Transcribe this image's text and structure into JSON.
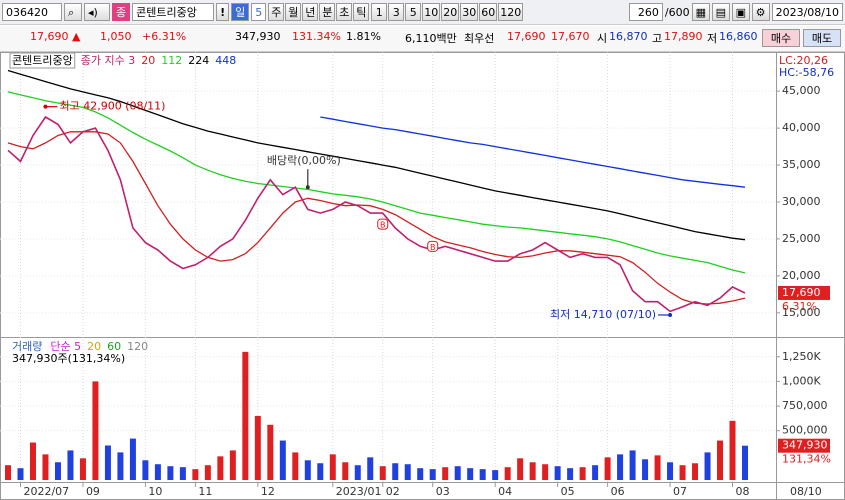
{
  "toolbar": {
    "code": "036420",
    "type_badge": "종",
    "name": "콘텐트리중앙",
    "alert": "!",
    "period": "일",
    "period_num": "5",
    "periods": [
      "주",
      "월",
      "년",
      "분",
      "초",
      "틱"
    ],
    "intervals": [
      "1",
      "3",
      "5",
      "10",
      "20",
      "30",
      "60",
      "120"
    ],
    "count": "260",
    "count_max": "/600",
    "date": "2023/08/10"
  },
  "quote": {
    "price": "17,690 ▲",
    "change": "1,050",
    "change_pct": "+6.31%",
    "volume": "347,930",
    "volume_ratio": "131.34%",
    "turnover": "1.81%",
    "amount": "6,110백만",
    "best_label": "최우선",
    "best_ask": "17,690",
    "best_bid": "17,670",
    "open_label": "시",
    "open": "16,870",
    "high_label": "고",
    "high": "17,890",
    "low_label": "저",
    "low": "16,860",
    "buy": "매수",
    "sell": "매도"
  },
  "chart_data": [
    {
      "type": "line",
      "title": "콘텐트리중앙",
      "lc": "LC:20,26",
      "hc": "HC:-58,76",
      "ylim": [
        12000,
        50300
      ],
      "yticks": [
        {
          "value": 15000,
          "label": "15,000"
        },
        {
          "value": 20000,
          "label": "20,000"
        },
        {
          "value": 25000,
          "label": "25,000"
        },
        {
          "value": 30000,
          "label": "30,000"
        },
        {
          "value": 35000,
          "label": "35,000"
        },
        {
          "value": 40000,
          "label": "40,000"
        },
        {
          "value": 45000,
          "label": "45,000"
        }
      ],
      "series": [
        {
          "name": "종가 지수 3",
          "color": "#c02070",
          "values": [
            37000,
            35500,
            39000,
            41500,
            40500,
            38000,
            39500,
            40000,
            37000,
            33000,
            26500,
            24500,
            23500,
            22000,
            21000,
            21500,
            22500,
            24000,
            25000,
            27500,
            30500,
            33000,
            31000,
            32000,
            29000,
            28500,
            29000,
            30000,
            29500,
            28500,
            28500,
            26500,
            25000,
            24000,
            23500,
            24000,
            23500,
            23000,
            22500,
            22000,
            22000,
            23000,
            23500,
            24500,
            23500,
            22500,
            23000,
            22500,
            22500,
            21500,
            18000,
            16500,
            16500,
            15200,
            15800,
            16500,
            16000,
            17000,
            18500,
            17690
          ]
        },
        {
          "name": "20",
          "color": "#d02020",
          "values": [
            38000,
            37500,
            37200,
            38000,
            39000,
            39500,
            39500,
            39500,
            39200,
            38000,
            35500,
            32500,
            29500,
            27000,
            25000,
            23500,
            22500,
            22000,
            22200,
            23000,
            24500,
            26500,
            28500,
            30000,
            30500,
            30200,
            29800,
            29500,
            29600,
            29500,
            29000,
            28300,
            27300,
            26300,
            25300,
            24600,
            24200,
            23800,
            23300,
            22900,
            22600,
            22500,
            22700,
            23100,
            23400,
            23400,
            23200,
            23000,
            22800,
            22600,
            21800,
            20500,
            19000,
            17800,
            16800,
            16300,
            16200,
            16300,
            16600,
            17000
          ]
        },
        {
          "name": "112",
          "color": "#20d020",
          "values": [
            44900,
            44500,
            44100,
            43700,
            43400,
            43100,
            42800,
            42200,
            41400,
            40400,
            39400,
            38500,
            37700,
            36900,
            36000,
            35000,
            34300,
            33700,
            33200,
            32800,
            32500,
            32300,
            32100,
            31900,
            31700,
            31400,
            31100,
            30900,
            30700,
            30400,
            30000,
            29500,
            29000,
            28500,
            28200,
            27900,
            27600,
            27300,
            27000,
            26800,
            26600,
            26500,
            26300,
            26100,
            25900,
            25700,
            25500,
            25300,
            25000,
            24600,
            24100,
            23600,
            23100,
            22700,
            22400,
            22100,
            21800,
            21300,
            20800,
            20400
          ]
        },
        {
          "name": "224",
          "color": "#000000",
          "values": [
            47800,
            47300,
            46800,
            46300,
            45800,
            45300,
            44900,
            44500,
            44100,
            43600,
            43000,
            42400,
            41800,
            41200,
            40600,
            40100,
            39600,
            39200,
            38800,
            38400,
            38000,
            37700,
            37400,
            37100,
            36800,
            36500,
            36200,
            35900,
            35600,
            35300,
            35000,
            34700,
            34300,
            33900,
            33500,
            33100,
            32700,
            32300,
            31900,
            31500,
            31200,
            30900,
            30600,
            30300,
            30000,
            29700,
            29400,
            29100,
            28800,
            28400,
            28000,
            27600,
            27200,
            26800,
            26400,
            26000,
            25700,
            25400,
            25100,
            24900
          ]
        },
        {
          "name": "448",
          "color": "#1030e0",
          "values": [
            null,
            null,
            null,
            null,
            null,
            null,
            null,
            null,
            null,
            null,
            null,
            null,
            null,
            null,
            null,
            null,
            null,
            null,
            null,
            null,
            null,
            null,
            null,
            null,
            null,
            41500,
            41200,
            40900,
            40600,
            40300,
            40000,
            39800,
            39500,
            39200,
            38900,
            38600,
            38300,
            38000,
            37800,
            37500,
            37200,
            36900,
            36600,
            36300,
            36000,
            35700,
            35400,
            35100,
            34800,
            34500,
            34200,
            33900,
            33600,
            33300,
            33000,
            32800,
            32600,
            32400,
            32200,
            32000
          ]
        }
      ],
      "annotations": [
        {
          "text": "최고 42,900 (08/11)",
          "x": 3,
          "y": 42900,
          "color": "#d00000"
        },
        {
          "text": "배당락(0,00%)",
          "x": 24,
          "y": 32000,
          "color": "#333333"
        },
        {
          "text": "최저 14,710 (07/10)",
          "x": 53,
          "y": 14710,
          "color": "#1030c0"
        }
      ],
      "signals": [
        {
          "text": "B",
          "x": 30,
          "y": 27000
        },
        {
          "text": "B",
          "x": 34,
          "y": 24000
        }
      ],
      "last_label": "17,690",
      "last_pct": "6,31%"
    },
    {
      "type": "bar",
      "title": "거래량",
      "legend_items": [
        {
          "name": "단순 5",
          "color": "#d020d0"
        },
        {
          "name": "20",
          "color": "#e0a000"
        },
        {
          "name": "60",
          "color": "#20a020"
        },
        {
          "name": "120",
          "color": "#888888"
        }
      ],
      "summary": "347,930주(131,34%)",
      "ylim": [
        0,
        1420000
      ],
      "yticks": [
        {
          "value": 500000,
          "label": "500,000"
        },
        {
          "value": 750000,
          "label": "750,000"
        },
        {
          "value": 1000000,
          "label": "1,000K"
        },
        {
          "value": 1250000,
          "label": "1,250K"
        }
      ],
      "categories": [
        null,
        "2022/07",
        null,
        null,
        null,
        null,
        "09",
        null,
        null,
        null,
        null,
        "10",
        null,
        null,
        null,
        "11",
        null,
        null,
        null,
        null,
        "12",
        null,
        null,
        null,
        null,
        null,
        "2023/01",
        null,
        null,
        null,
        "02",
        null,
        null,
        null,
        "03",
        null,
        null,
        null,
        null,
        "04",
        null,
        null,
        null,
        null,
        "05",
        null,
        null,
        null,
        "06",
        null,
        null,
        null,
        null,
        "07",
        null,
        null,
        null,
        null,
        "08",
        null
      ],
      "values": [
        150000,
        120000,
        380000,
        260000,
        180000,
        300000,
        220000,
        1000000,
        350000,
        280000,
        420000,
        200000,
        160000,
        140000,
        130000,
        110000,
        150000,
        240000,
        300000,
        1300000,
        650000,
        560000,
        400000,
        280000,
        200000,
        170000,
        260000,
        180000,
        150000,
        230000,
        140000,
        170000,
        160000,
        120000,
        110000,
        130000,
        140000,
        120000,
        110000,
        100000,
        130000,
        220000,
        180000,
        160000,
        140000,
        120000,
        130000,
        150000,
        230000,
        260000,
        300000,
        210000,
        250000,
        180000,
        150000,
        170000,
        280000,
        400000,
        600000,
        347930
      ],
      "up_color": "#e02020",
      "down_color": "#2040e0",
      "last_label": "347,930",
      "last_pct": "131,34%",
      "x_end_label": "08/10"
    }
  ]
}
